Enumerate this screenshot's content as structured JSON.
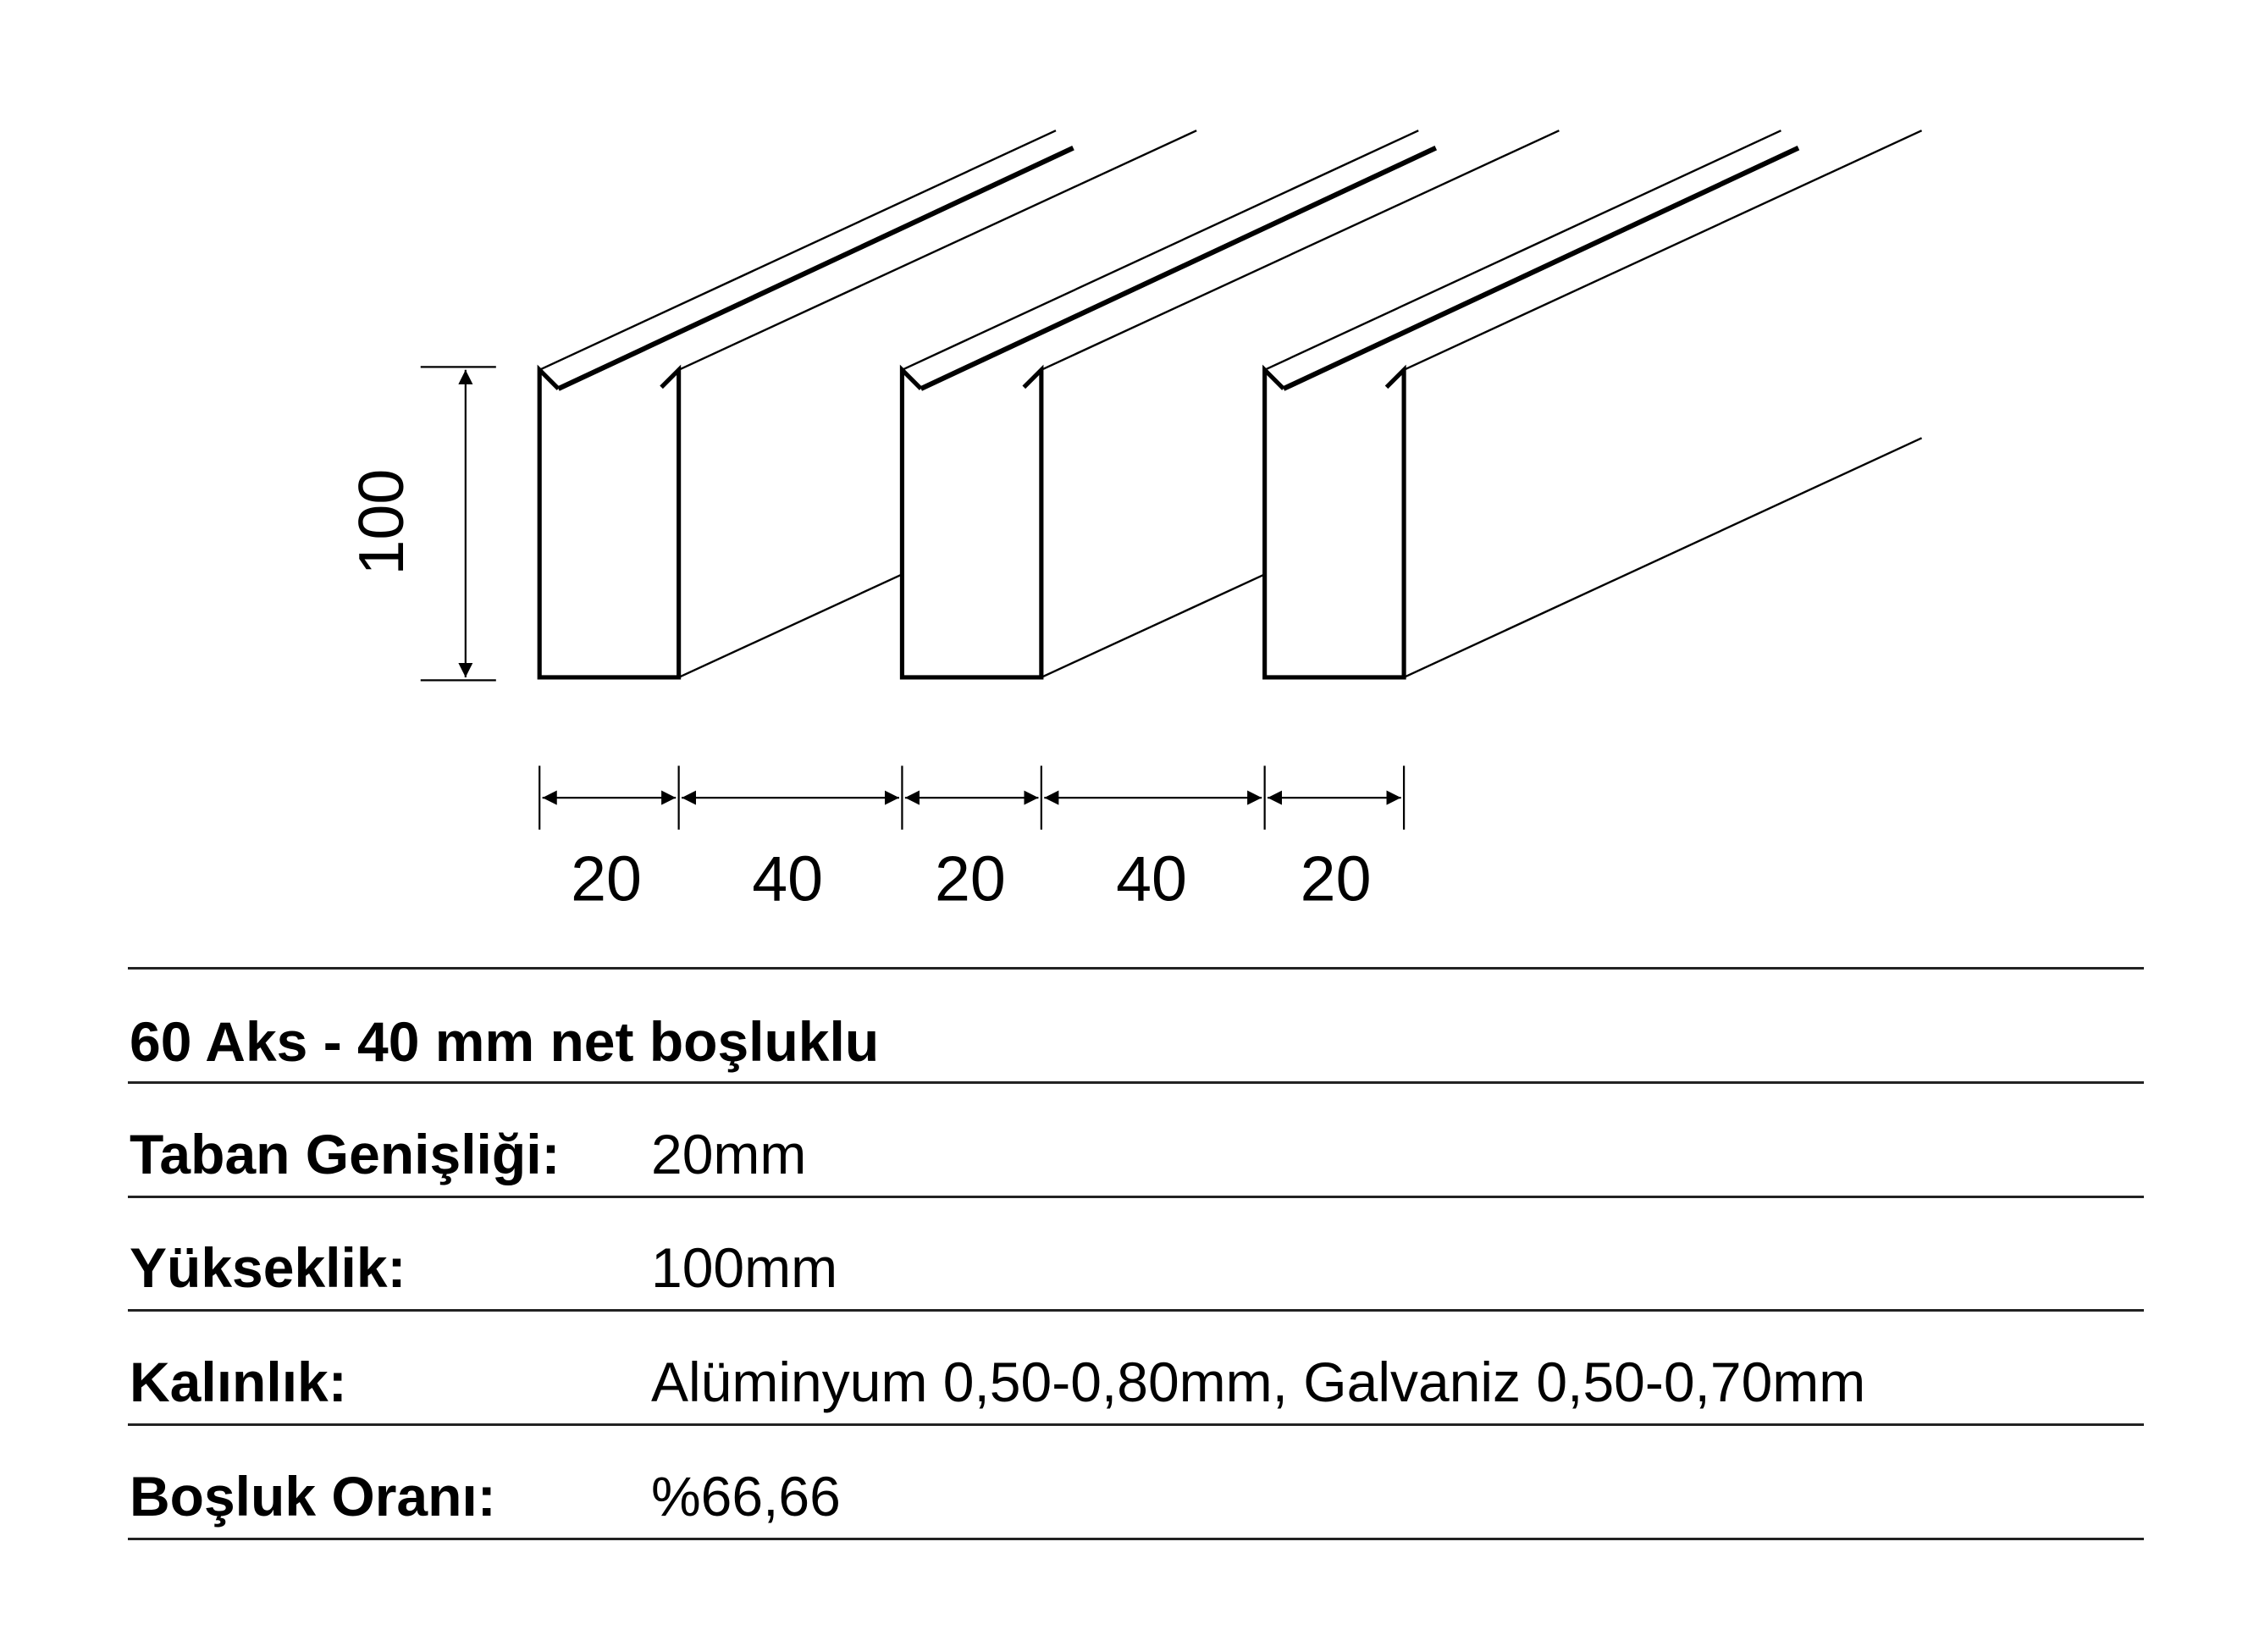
{
  "diagram": {
    "height_label": "100",
    "width_labels": [
      "20",
      "40",
      "20",
      "40",
      "20"
    ],
    "profile_count": 3
  },
  "spec": {
    "title": "60 Aks - 40 mm net boşluklu",
    "rows": [
      {
        "label": "Taban Genişliği:",
        "value": "20mm"
      },
      {
        "label": "Yükseklik:",
        "value": "100mm"
      },
      {
        "label": "Kalınlık:",
        "value": "Alüminyum 0,50-0,80mm, Galvaniz 0,50-0,70mm"
      },
      {
        "label": "Boşluk Oranı:",
        "value": "%66,66"
      }
    ]
  }
}
